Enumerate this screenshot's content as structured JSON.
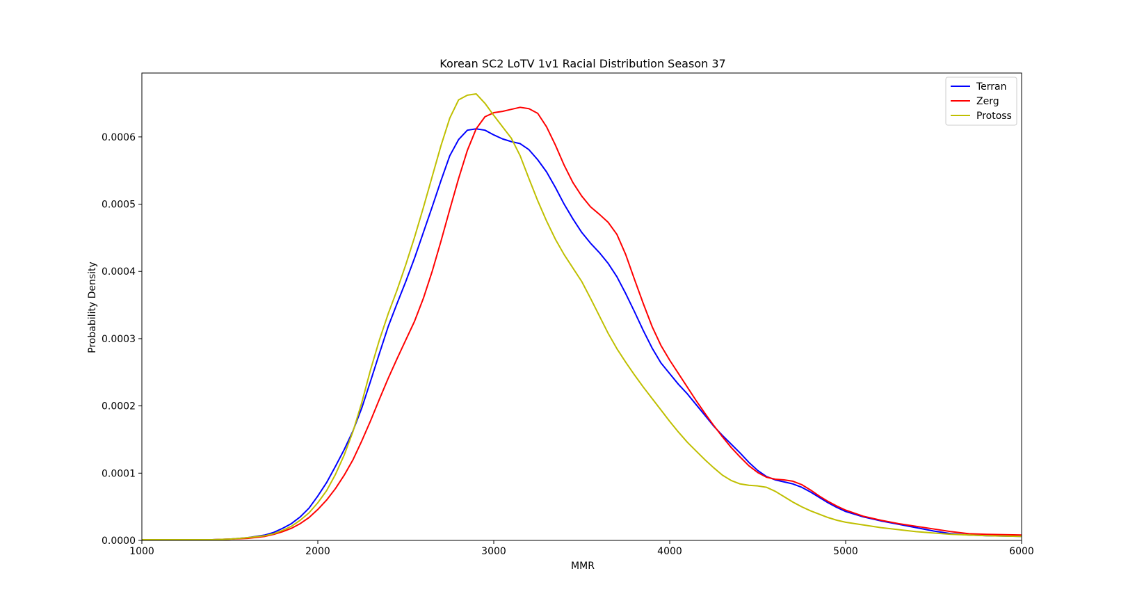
{
  "chart_data": {
    "type": "line",
    "title": "Korean SC2 LoTV 1v1 Racial Distribution Season 37",
    "xlabel": "MMR",
    "ylabel": "Probability Density",
    "xlim": [
      1000,
      6000
    ],
    "ylim": [
      0,
      0.000695
    ],
    "x_ticks": [
      1000,
      2000,
      3000,
      4000,
      5000,
      6000
    ],
    "x_tick_labels": [
      "1000",
      "2000",
      "3000",
      "4000",
      "5000",
      "6000"
    ],
    "y_ticks": [
      0,
      0.0001,
      0.0002,
      0.0003,
      0.0004,
      0.0005,
      0.0006
    ],
    "y_tick_labels": [
      "0.0000",
      "0.0001",
      "0.0002",
      "0.0003",
      "0.0004",
      "0.0005",
      "0.0006"
    ],
    "grid": false,
    "legend_position": "top-right",
    "series": [
      {
        "name": "Terran",
        "color": "#0000ff",
        "points": [
          [
            1000,
            1e-06
          ],
          [
            1200,
            1e-06
          ],
          [
            1400,
            1e-06
          ],
          [
            1500,
            2e-06
          ],
          [
            1600,
            4e-06
          ],
          [
            1700,
            8e-06
          ],
          [
            1750,
            1.2e-05
          ],
          [
            1800,
            1.8e-05
          ],
          [
            1850,
            2.5e-05
          ],
          [
            1900,
            3.5e-05
          ],
          [
            1950,
            4.8e-05
          ],
          [
            2000,
            6.6e-05
          ],
          [
            2050,
            8.6e-05
          ],
          [
            2100,
            0.00011
          ],
          [
            2150,
            0.000135
          ],
          [
            2200,
            0.000163
          ],
          [
            2250,
            0.000197
          ],
          [
            2300,
            0.000237
          ],
          [
            2350,
            0.000278
          ],
          [
            2400,
            0.000318
          ],
          [
            2450,
            0.000352
          ],
          [
            2500,
            0.000385
          ],
          [
            2550,
            0.00042
          ],
          [
            2600,
            0.000458
          ],
          [
            2650,
            0.000496
          ],
          [
            2700,
            0.000535
          ],
          [
            2750,
            0.000572
          ],
          [
            2800,
            0.000596
          ],
          [
            2850,
            0.00061
          ],
          [
            2900,
            0.000612
          ],
          [
            2950,
            0.00061
          ],
          [
            3000,
            0.000603
          ],
          [
            3050,
            0.000597
          ],
          [
            3100,
            0.000593
          ],
          [
            3150,
            0.00059
          ],
          [
            3200,
            0.000581
          ],
          [
            3250,
            0.000566
          ],
          [
            3300,
            0.000548
          ],
          [
            3350,
            0.000525
          ],
          [
            3400,
            0.0005
          ],
          [
            3450,
            0.000478
          ],
          [
            3500,
            0.000458
          ],
          [
            3550,
            0.000442
          ],
          [
            3600,
            0.000428
          ],
          [
            3650,
            0.000412
          ],
          [
            3700,
            0.000392
          ],
          [
            3750,
            0.000367
          ],
          [
            3800,
            0.00034
          ],
          [
            3850,
            0.000312
          ],
          [
            3900,
            0.000286
          ],
          [
            3950,
            0.000264
          ],
          [
            4000,
            0.000248
          ],
          [
            4050,
            0.000232
          ],
          [
            4100,
            0.000218
          ],
          [
            4150,
            0.000202
          ],
          [
            4200,
            0.000186
          ],
          [
            4250,
            0.00017
          ],
          [
            4300,
            0.000156
          ],
          [
            4350,
            0.000143
          ],
          [
            4400,
            0.00013
          ],
          [
            4450,
            0.000116
          ],
          [
            4500,
            0.000104
          ],
          [
            4550,
            9.5e-05
          ],
          [
            4600,
            9e-05
          ],
          [
            4650,
            8.7e-05
          ],
          [
            4700,
            8.4e-05
          ],
          [
            4750,
            7.9e-05
          ],
          [
            4800,
            7.2e-05
          ],
          [
            4850,
            6.4e-05
          ],
          [
            4900,
            5.6e-05
          ],
          [
            4950,
            4.9e-05
          ],
          [
            5000,
            4.3e-05
          ],
          [
            5100,
            3.5e-05
          ],
          [
            5200,
            2.9e-05
          ],
          [
            5300,
            2.4e-05
          ],
          [
            5400,
            1.9e-05
          ],
          [
            5500,
            1.4e-05
          ],
          [
            5600,
            1e-05
          ],
          [
            5700,
            8e-06
          ],
          [
            5800,
            7e-06
          ],
          [
            6000,
            6e-06
          ]
        ]
      },
      {
        "name": "Zerg",
        "color": "#ff0000",
        "points": [
          [
            1000,
            1e-06
          ],
          [
            1200,
            1e-06
          ],
          [
            1400,
            1e-06
          ],
          [
            1500,
            2e-06
          ],
          [
            1600,
            3e-06
          ],
          [
            1700,
            6e-06
          ],
          [
            1750,
            9e-06
          ],
          [
            1800,
            1.3e-05
          ],
          [
            1850,
            1.8e-05
          ],
          [
            1900,
            2.5e-05
          ],
          [
            1950,
            3.4e-05
          ],
          [
            2000,
            4.6e-05
          ],
          [
            2050,
            6e-05
          ],
          [
            2100,
            7.7e-05
          ],
          [
            2150,
            9.7e-05
          ],
          [
            2200,
            0.00012
          ],
          [
            2250,
            0.000148
          ],
          [
            2300,
            0.000178
          ],
          [
            2350,
            0.00021
          ],
          [
            2400,
            0.000241
          ],
          [
            2450,
            0.00027
          ],
          [
            2500,
            0.000298
          ],
          [
            2550,
            0.000326
          ],
          [
            2600,
            0.00036
          ],
          [
            2650,
            0.0004
          ],
          [
            2700,
            0.000445
          ],
          [
            2750,
            0.000492
          ],
          [
            2800,
            0.000538
          ],
          [
            2850,
            0.00058
          ],
          [
            2900,
            0.000612
          ],
          [
            2950,
            0.00063
          ],
          [
            3000,
            0.000636
          ],
          [
            3050,
            0.000638
          ],
          [
            3100,
            0.000641
          ],
          [
            3150,
            0.000644
          ],
          [
            3200,
            0.000642
          ],
          [
            3250,
            0.000635
          ],
          [
            3300,
            0.000615
          ],
          [
            3350,
            0.000588
          ],
          [
            3400,
            0.000558
          ],
          [
            3450,
            0.000532
          ],
          [
            3500,
            0.000512
          ],
          [
            3550,
            0.000496
          ],
          [
            3600,
            0.000485
          ],
          [
            3650,
            0.000473
          ],
          [
            3700,
            0.000455
          ],
          [
            3750,
            0.000425
          ],
          [
            3800,
            0.000388
          ],
          [
            3850,
            0.000352
          ],
          [
            3900,
            0.000318
          ],
          [
            3950,
            0.00029
          ],
          [
            4000,
            0.000268
          ],
          [
            4050,
            0.000248
          ],
          [
            4100,
            0.000228
          ],
          [
            4150,
            0.000208
          ],
          [
            4200,
            0.000189
          ],
          [
            4250,
            0.000171
          ],
          [
            4300,
            0.000154
          ],
          [
            4350,
            0.000138
          ],
          [
            4400,
            0.000124
          ],
          [
            4450,
            0.000111
          ],
          [
            4500,
            0.000101
          ],
          [
            4550,
            9.4e-05
          ],
          [
            4600,
            9.1e-05
          ],
          [
            4650,
            9e-05
          ],
          [
            4700,
            8.8e-05
          ],
          [
            4750,
            8.3e-05
          ],
          [
            4800,
            7.5e-05
          ],
          [
            4850,
            6.6e-05
          ],
          [
            4900,
            5.8e-05
          ],
          [
            4950,
            5.1e-05
          ],
          [
            5000,
            4.5e-05
          ],
          [
            5100,
            3.6e-05
          ],
          [
            5200,
            3e-05
          ],
          [
            5300,
            2.5e-05
          ],
          [
            5400,
            2.1e-05
          ],
          [
            5500,
            1.7e-05
          ],
          [
            5600,
            1.3e-05
          ],
          [
            5700,
            1e-05
          ],
          [
            5800,
            9e-06
          ],
          [
            6000,
            8e-06
          ]
        ]
      },
      {
        "name": "Protoss",
        "color": "#bfbf00",
        "points": [
          [
            1000,
            1e-06
          ],
          [
            1200,
            1e-06
          ],
          [
            1400,
            1e-06
          ],
          [
            1500,
            2e-06
          ],
          [
            1600,
            4e-06
          ],
          [
            1700,
            7e-06
          ],
          [
            1750,
            1e-05
          ],
          [
            1800,
            1.5e-05
          ],
          [
            1850,
            2.1e-05
          ],
          [
            1900,
            3e-05
          ],
          [
            1950,
            4.1e-05
          ],
          [
            2000,
            5.6e-05
          ],
          [
            2050,
            7.4e-05
          ],
          [
            2100,
            9.8e-05
          ],
          [
            2150,
            0.000127
          ],
          [
            2200,
            0.000162
          ],
          [
            2250,
            0.000205
          ],
          [
            2300,
            0.000254
          ],
          [
            2350,
            0.000298
          ],
          [
            2400,
            0.000337
          ],
          [
            2450,
            0.000372
          ],
          [
            2500,
            0.00041
          ],
          [
            2550,
            0.000451
          ],
          [
            2600,
            0.000495
          ],
          [
            2650,
            0.000541
          ],
          [
            2700,
            0.000587
          ],
          [
            2750,
            0.000628
          ],
          [
            2800,
            0.000655
          ],
          [
            2850,
            0.000662
          ],
          [
            2900,
            0.000664
          ],
          [
            2950,
            0.00065
          ],
          [
            3000,
            0.000632
          ],
          [
            3050,
            0.000615
          ],
          [
            3100,
            0.000598
          ],
          [
            3150,
            0.000572
          ],
          [
            3200,
            0.000538
          ],
          [
            3250,
            0.000505
          ],
          [
            3300,
            0.000475
          ],
          [
            3350,
            0.000448
          ],
          [
            3400,
            0.000425
          ],
          [
            3450,
            0.000405
          ],
          [
            3500,
            0.000385
          ],
          [
            3550,
            0.00036
          ],
          [
            3600,
            0.000334
          ],
          [
            3650,
            0.000308
          ],
          [
            3700,
            0.000285
          ],
          [
            3750,
            0.000265
          ],
          [
            3800,
            0.000246
          ],
          [
            3850,
            0.000228
          ],
          [
            3900,
            0.000211
          ],
          [
            3950,
            0.000194
          ],
          [
            4000,
            0.000177
          ],
          [
            4050,
            0.000161
          ],
          [
            4100,
            0.000146
          ],
          [
            4150,
            0.000133
          ],
          [
            4200,
            0.00012
          ],
          [
            4250,
            0.000108
          ],
          [
            4300,
            9.7e-05
          ],
          [
            4350,
            8.9e-05
          ],
          [
            4400,
            8.4e-05
          ],
          [
            4450,
            8.2e-05
          ],
          [
            4500,
            8.1e-05
          ],
          [
            4550,
            7.9e-05
          ],
          [
            4600,
            7.3e-05
          ],
          [
            4650,
            6.5e-05
          ],
          [
            4700,
            5.7e-05
          ],
          [
            4750,
            5e-05
          ],
          [
            4800,
            4.4e-05
          ],
          [
            4850,
            3.9e-05
          ],
          [
            4900,
            3.4e-05
          ],
          [
            4950,
            3e-05
          ],
          [
            5000,
            2.7e-05
          ],
          [
            5100,
            2.3e-05
          ],
          [
            5200,
            1.9e-05
          ],
          [
            5300,
            1.6e-05
          ],
          [
            5400,
            1.3e-05
          ],
          [
            5500,
            1.1e-05
          ],
          [
            5600,
            9e-06
          ],
          [
            5700,
            8e-06
          ],
          [
            5800,
            7e-06
          ],
          [
            6000,
            6e-06
          ]
        ]
      }
    ]
  }
}
